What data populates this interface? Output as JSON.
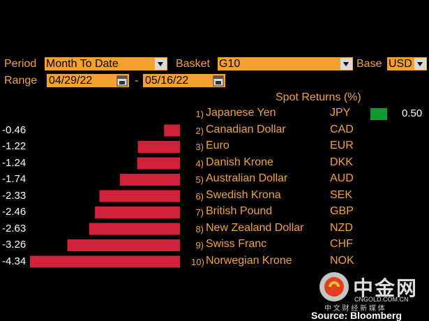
{
  "controls": {
    "period_label": "Period",
    "period_value": "Month To Date",
    "basket_label": "Basket",
    "basket_value": "G10",
    "base_label": "Base",
    "base_value": "USD",
    "range_label": "Range",
    "range_start": "04/29/22",
    "range_sep": "-",
    "range_end": "05/16/22"
  },
  "header": {
    "spot_returns": "Spot Returns (%)"
  },
  "watermark": {
    "brand": "中金网",
    "domain": "CNGOLD.COM.CN",
    "tagline": "中 文 财 经 新 媒 体"
  },
  "source": "Source: Bloomberg",
  "colors": {
    "negative": "#d0203a",
    "positive": "#0e9a2c",
    "accent": "#f6a12e"
  },
  "chart_data": {
    "type": "bar",
    "orientation": "horizontal",
    "title": "Spot Returns (%)",
    "categories": [
      "Japanese Yen",
      "Canadian Dollar",
      "Euro",
      "Danish Krone",
      "Australian Dollar",
      "Swedish Krona",
      "British Pound",
      "New Zealand Dollar",
      "Swiss Franc",
      "Norwegian Krone"
    ],
    "ranks": [
      "1)",
      "2)",
      "3)",
      "4)",
      "5)",
      "6)",
      "7)",
      "8)",
      "9)",
      "10)"
    ],
    "codes": [
      "JPY",
      "CAD",
      "EUR",
      "DKK",
      "AUD",
      "SEK",
      "GBP",
      "NZD",
      "CHF",
      "NOK"
    ],
    "values": [
      0.5,
      -0.46,
      -1.22,
      -1.24,
      -1.74,
      -2.33,
      -2.46,
      -2.63,
      -3.26,
      -4.34
    ],
    "labels": [
      "0.50",
      "-0.46",
      "-1.22",
      "-1.24",
      "-1.74",
      "-2.33",
      "-2.46",
      "-2.63",
      "-3.26",
      "-4.34"
    ],
    "xlim": [
      -4.34,
      0.5
    ]
  }
}
